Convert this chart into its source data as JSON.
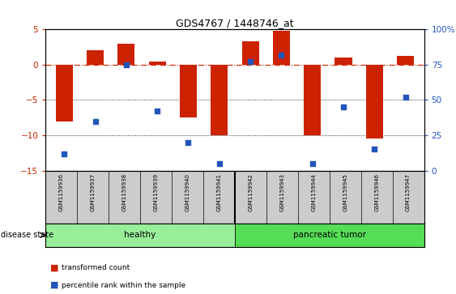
{
  "title": "GDS4767 / 1448746_at",
  "samples": [
    "GSM1159936",
    "GSM1159937",
    "GSM1159938",
    "GSM1159939",
    "GSM1159940",
    "GSM1159941",
    "GSM1159942",
    "GSM1159943",
    "GSM1159944",
    "GSM1159945",
    "GSM1159946",
    "GSM1159947"
  ],
  "transformed_count": [
    -8.0,
    2.0,
    3.0,
    0.5,
    -7.5,
    -10.0,
    3.3,
    4.8,
    -10.0,
    1.0,
    -10.5,
    1.3
  ],
  "percentile_rank": [
    12,
    35,
    75,
    42,
    20,
    5,
    77,
    82,
    5,
    45,
    15,
    52
  ],
  "ylim_left": [
    -15,
    5
  ],
  "ylim_right": [
    0,
    100
  ],
  "bar_color": "#CC2200",
  "dot_color": "#2255BB",
  "healthy_color": "#99EE99",
  "tumor_color": "#55DD55",
  "healthy_label": "healthy",
  "tumor_label": "pancreatic tumor",
  "disease_state_label": "disease state",
  "legend_bar_label": "transformed count",
  "legend_dot_label": "percentile rank within the sample",
  "yticks_left": [
    -15,
    -10,
    -5,
    0,
    5
  ],
  "yticks_right": [
    0,
    25,
    50,
    75,
    100
  ],
  "hline_y": 0,
  "dotted_lines": [
    -5,
    -10
  ],
  "bar_width": 0.55,
  "n_healthy": 6,
  "n_tumor": 6
}
